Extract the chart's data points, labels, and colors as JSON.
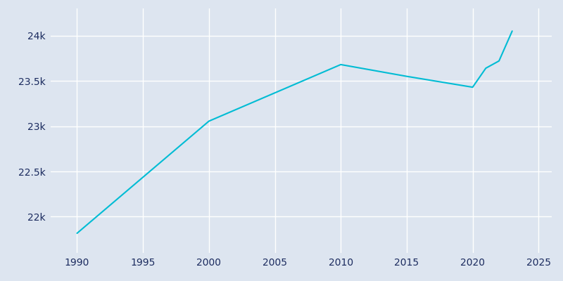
{
  "years": [
    1990,
    2000,
    2010,
    2015,
    2020,
    2021,
    2022,
    2023
  ],
  "population": [
    21817,
    23055,
    23680,
    23550,
    23430,
    23640,
    23720,
    24050
  ],
  "line_color": "#00BCD4",
  "bg_color": "#DDE5F0",
  "grid_color": "#ffffff",
  "text_color": "#1a2a5e",
  "xlim": [
    1988,
    2026
  ],
  "ylim": [
    21600,
    24300
  ],
  "xticks": [
    1990,
    1995,
    2000,
    2005,
    2010,
    2015,
    2020,
    2025
  ],
  "ytick_values": [
    22000,
    22500,
    23000,
    23500,
    24000
  ],
  "ytick_labels": [
    "22k",
    "22.5k",
    "23k",
    "23.5k",
    "24k"
  ]
}
